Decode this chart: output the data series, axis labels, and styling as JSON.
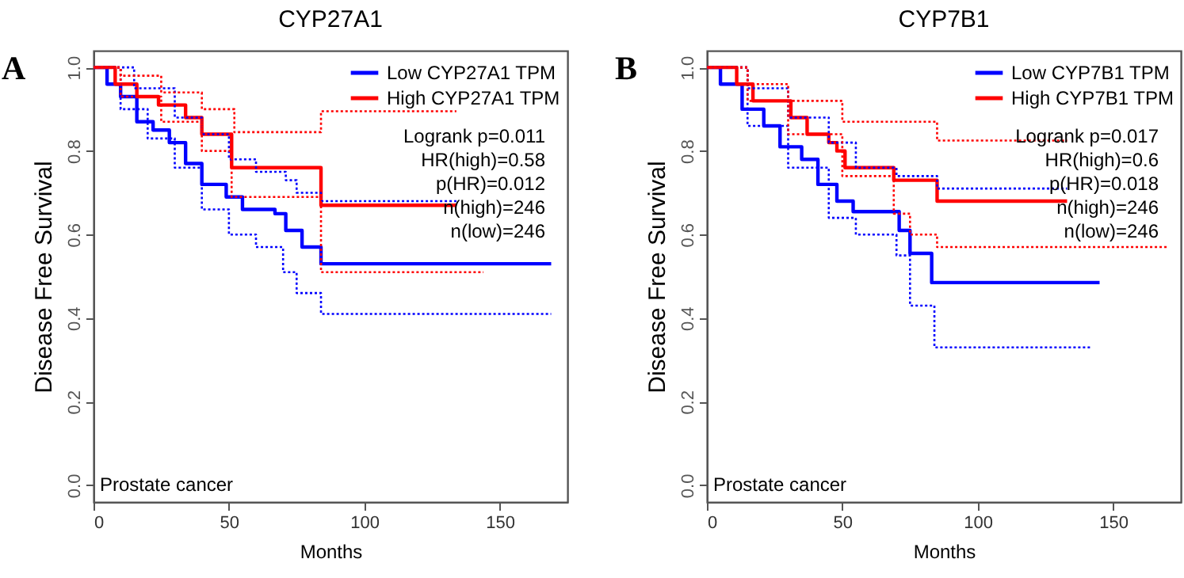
{
  "chart_data": [
    {
      "type": "step",
      "title": "CYP27A1",
      "xlabel": "Months",
      "ylabel": "Disease Free Survival",
      "legend": "top right",
      "xlim": [
        0,
        175
      ],
      "xticks": [
        0,
        50,
        100,
        150
      ],
      "ylim": [
        -0.04,
        1.04
      ],
      "yticks": [
        {
          "value": 0,
          "label": "0.0"
        },
        {
          "value": 0.2,
          "label": "0.2"
        },
        {
          "value": 0.4,
          "label": "0.4"
        },
        {
          "value": 0.6,
          "label": "0.6"
        },
        {
          "value": 0.8,
          "label": "0.8"
        },
        {
          "value": 1,
          "label": "1.0"
        }
      ],
      "grid": false,
      "annotations": [
        "A",
        "Logrank p=0.011",
        "HR(high)=0.58",
        "p(HR)=0.012",
        "n(high)=246",
        "n(low)=246",
        "Prostate cancer"
      ],
      "series": [
        {
          "name": "Low CYP27A1 TPM",
          "color": "#0000ff",
          "line_style": "solid",
          "x": [
            0,
            5,
            10,
            16,
            22,
            28,
            34,
            40,
            49,
            55,
            67,
            71,
            77,
            84,
            169
          ],
          "values": [
            1,
            0.96,
            0.93,
            0.87,
            0.85,
            0.82,
            0.77,
            0.72,
            0.69,
            0.66,
            0.65,
            0.61,
            0.57,
            0.53,
            0.53
          ]
        },
        {
          "name": "High CYP27A1 TPM",
          "color": "#ff0000",
          "line_style": "solid",
          "x": [
            0,
            8,
            16,
            24,
            34,
            40,
            51,
            84,
            134
          ],
          "values": [
            1,
            0.96,
            0.93,
            0.91,
            0.88,
            0.84,
            0.76,
            0.67,
            0.67
          ]
        },
        {
          "color": "#0000ff",
          "line_style": "dotted",
          "x": [
            0,
            15,
            30,
            40,
            50,
            60,
            71,
            75,
            84,
            134
          ],
          "values": [
            1,
            0.95,
            0.88,
            0.84,
            0.78,
            0.75,
            0.73,
            0.7,
            0.68,
            0.68
          ]
        },
        {
          "color": "#0000ff",
          "line_style": "dotted",
          "x": [
            0,
            10,
            20,
            30,
            40,
            50,
            60,
            70,
            75,
            84,
            169
          ],
          "values": [
            1,
            0.9,
            0.83,
            0.76,
            0.66,
            0.6,
            0.57,
            0.51,
            0.46,
            0.41,
            0.41
          ]
        },
        {
          "color": "#ff0000",
          "line_style": "dotted",
          "x": [
            0,
            10,
            25,
            40,
            52,
            84,
            134
          ],
          "values": [
            1,
            0.98,
            0.94,
            0.9,
            0.845,
            0.895,
            0.895
          ]
        },
        {
          "color": "#ff0000",
          "line_style": "dotted",
          "x": [
            0,
            10,
            25,
            40,
            51,
            84,
            144
          ],
          "values": [
            1,
            0.93,
            0.87,
            0.8,
            0.69,
            0.51,
            0.51
          ]
        }
      ]
    },
    {
      "type": "step",
      "title": "CYP7B1",
      "xlabel": "Months",
      "ylabel": "Disease Free Survival",
      "legend": "top right",
      "xlim": [
        0,
        175
      ],
      "xticks": [
        0,
        50,
        100,
        150
      ],
      "ylim": [
        -0.04,
        1.04
      ],
      "yticks": [
        {
          "value": 0,
          "label": "0.0"
        },
        {
          "value": 0.2,
          "label": "0.2"
        },
        {
          "value": 0.4,
          "label": "0.4"
        },
        {
          "value": 0.6,
          "label": "0.6"
        },
        {
          "value": 0.8,
          "label": "0.8"
        },
        {
          "value": 1,
          "label": "1.0"
        }
      ],
      "grid": false,
      "annotations": [
        "B",
        "Logrank p=0.017",
        "HR(high)=0.6",
        "p(HR)=0.018",
        "n(high)=246",
        "n(low)=246",
        "Prostate cancer"
      ],
      "series": [
        {
          "name": "Low CYP7B1 TPM",
          "color": "#0000ff",
          "line_style": "solid",
          "x": [
            0,
            5,
            13,
            21,
            27,
            35,
            41,
            48,
            54,
            71,
            75,
            83,
            145
          ],
          "values": [
            1,
            0.96,
            0.9,
            0.86,
            0.81,
            0.78,
            0.72,
            0.68,
            0.655,
            0.61,
            0.555,
            0.485,
            0.485
          ]
        },
        {
          "name": "High CYP7B1 TPM",
          "color": "#ff0000",
          "line_style": "solid",
          "x": [
            0,
            11,
            17,
            31,
            37,
            45,
            48,
            51,
            69,
            85,
            133
          ],
          "values": [
            1,
            0.96,
            0.92,
            0.88,
            0.84,
            0.82,
            0.8,
            0.76,
            0.73,
            0.68,
            0.68
          ]
        },
        {
          "color": "#0000ff",
          "line_style": "dotted",
          "x": [
            0,
            15,
            30,
            45,
            55,
            70,
            85,
            133
          ],
          "values": [
            1,
            0.95,
            0.88,
            0.82,
            0.76,
            0.74,
            0.71,
            0.71
          ]
        },
        {
          "color": "#0000ff",
          "line_style": "dotted",
          "x": [
            0,
            15,
            30,
            45,
            55,
            70,
            75,
            84,
            142
          ],
          "values": [
            1,
            0.86,
            0.76,
            0.64,
            0.6,
            0.55,
            0.43,
            0.33,
            0.33
          ]
        },
        {
          "color": "#ff0000",
          "line_style": "dotted",
          "x": [
            0,
            15,
            30,
            50,
            85,
            133
          ],
          "values": [
            1,
            0.96,
            0.92,
            0.87,
            0.825,
            0.825
          ]
        },
        {
          "color": "#ff0000",
          "line_style": "dotted",
          "x": [
            0,
            15,
            30,
            50,
            69,
            75,
            85,
            170
          ],
          "values": [
            1,
            0.92,
            0.84,
            0.74,
            0.65,
            0.6,
            0.57,
            0.57
          ]
        }
      ]
    }
  ]
}
